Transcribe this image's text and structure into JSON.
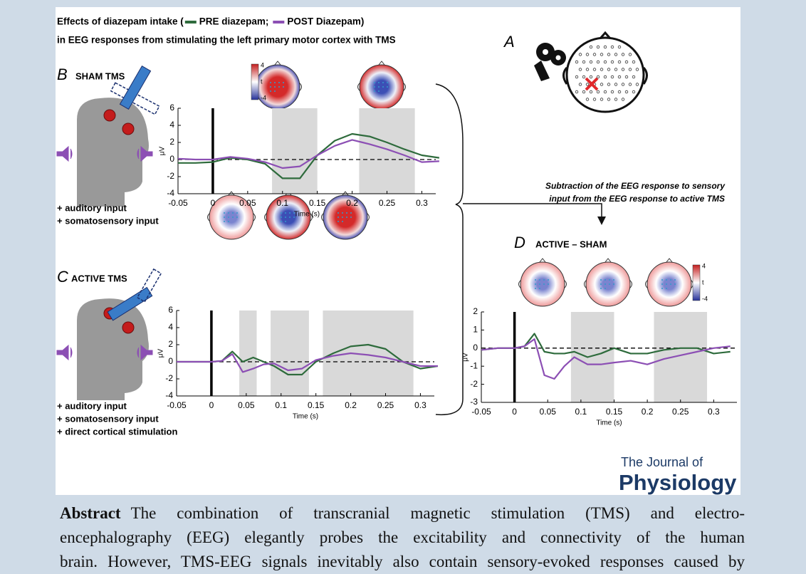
{
  "figure": {
    "title_start": "Effects of diazepam intake (",
    "legend_separator": ";",
    "title_end": ")",
    "subtitle": "in EEG responses from stimulating the left primary motor cortex with TMS",
    "panel_a": "A",
    "panel_b": {
      "letter": "B",
      "label": "SHAM TMS",
      "inputs": [
        "+ auditory input",
        "+ somatosensory input"
      ]
    },
    "panel_c": {
      "letter": "C",
      "label": "ACTIVE TMS",
      "inputs": [
        "+ auditory input",
        "+ somatosensory input",
        "+ direct cortical stimulation"
      ]
    },
    "panel_d": {
      "letter": "D",
      "label": "ACTIVE – SHAM"
    },
    "subtraction_note": [
      "Subtraction of the EEG response to sensory",
      "input from the EEG response to active TMS"
    ],
    "journal": [
      "The Journal of",
      "Physiology"
    ]
  },
  "chart_data": [
    {
      "type": "line",
      "xlabel": "Time (s)",
      "ylabel": "μV",
      "x": [
        -0.05,
        -0.025,
        0,
        0.025,
        0.05,
        0.075,
        0.1,
        0.125,
        0.15,
        0.175,
        0.2,
        0.225,
        0.25,
        0.275,
        0.3,
        0.325
      ],
      "series": [
        {
          "name": "PRE diazepam",
          "color": "#2e6b3c",
          "values": [
            -0.4,
            -0.4,
            -0.3,
            0.2,
            0,
            -0.5,
            -2.2,
            -2.2,
            0.5,
            2.2,
            3,
            2.7,
            2,
            1.2,
            0.5,
            0.2
          ]
        },
        {
          "name": "POST Diazepam",
          "color": "#8c4fb4",
          "values": [
            0.1,
            0,
            0,
            0.3,
            0.1,
            -0.3,
            -1,
            -0.8,
            0.5,
            1.6,
            2.3,
            1.8,
            1.2,
            0.5,
            -0.3,
            -0.2
          ]
        }
      ],
      "shaded_windows": [
        [
          0.085,
          0.15
        ],
        [
          0.21,
          0.29
        ]
      ],
      "xlim": [
        -0.05,
        0.32
      ],
      "ylim": [
        -4,
        6
      ],
      "xticks": [
        -0.05,
        0,
        0.05,
        0.1,
        0.15,
        0.2,
        0.25,
        0.3
      ],
      "yticks": [
        -4,
        -2,
        0,
        2,
        4,
        6
      ],
      "colorbar": {
        "max": 4,
        "label": "t",
        "min": -4
      }
    },
    {
      "type": "line",
      "xlabel": "Time (s)",
      "ylabel": "μV",
      "x": [
        -0.05,
        -0.025,
        0,
        0.015,
        0.03,
        0.045,
        0.06,
        0.075,
        0.09,
        0.11,
        0.13,
        0.15,
        0.175,
        0.2,
        0.225,
        0.25,
        0.275,
        0.3,
        0.325
      ],
      "series": [
        {
          "name": "PRE diazepam",
          "color": "#2e6b3c",
          "values": [
            0,
            0,
            0,
            0.1,
            1.2,
            0,
            0.5,
            0,
            -0.5,
            -1.5,
            -1.5,
            0,
            1,
            1.8,
            2,
            1.5,
            0,
            -0.8,
            -0.5
          ]
        },
        {
          "name": "POST Diazepam",
          "color": "#8c4fb4",
          "values": [
            0,
            0,
            0,
            0.1,
            0.9,
            -1.2,
            -0.8,
            -0.3,
            -0.2,
            -1,
            -0.8,
            0.2,
            0.7,
            1,
            0.8,
            0.5,
            0,
            -0.5,
            -0.5
          ]
        }
      ],
      "shaded_windows": [
        [
          0.04,
          0.065
        ],
        [
          0.085,
          0.14
        ],
        [
          0.16,
          0.29
        ]
      ],
      "xlim": [
        -0.05,
        0.32
      ],
      "ylim": [
        -4,
        6
      ],
      "xticks": [
        -0.05,
        0,
        0.05,
        0.1,
        0.15,
        0.2,
        0.25,
        0.3
      ],
      "yticks": [
        -4,
        -2,
        0,
        2,
        4,
        6
      ]
    },
    {
      "type": "line",
      "xlabel": "Time (s)",
      "ylabel": "μV",
      "x": [
        -0.05,
        -0.025,
        0,
        0.015,
        0.03,
        0.045,
        0.06,
        0.075,
        0.09,
        0.11,
        0.13,
        0.15,
        0.175,
        0.2,
        0.225,
        0.25,
        0.275,
        0.3,
        0.325
      ],
      "series": [
        {
          "name": "PRE diazepam",
          "color": "#2e6b3c",
          "values": [
            -0.1,
            0,
            0,
            0.1,
            0.8,
            -0.2,
            -0.3,
            -0.3,
            -0.2,
            -0.5,
            -0.3,
            0,
            -0.3,
            -0.3,
            -0.1,
            0,
            0,
            -0.3,
            -0.2
          ]
        },
        {
          "name": "POST Diazepam",
          "color": "#8c4fb4",
          "values": [
            -0.1,
            0,
            0,
            0.1,
            0.5,
            -1.5,
            -1.7,
            -1,
            -0.5,
            -0.9,
            -0.9,
            -0.8,
            -0.7,
            -0.9,
            -0.6,
            -0.4,
            -0.2,
            0,
            0.1
          ]
        }
      ],
      "shaded_windows": [
        [
          0.085,
          0.15
        ],
        [
          0.21,
          0.29
        ]
      ],
      "xlim": [
        -0.05,
        0.335
      ],
      "ylim": [
        -3,
        2
      ],
      "xticks": [
        -0.05,
        0,
        0.05,
        0.1,
        0.15,
        0.2,
        0.25,
        0.3
      ],
      "yticks": [
        -3,
        -2,
        -1,
        0,
        1,
        2
      ],
      "colorbar": {
        "max": 4,
        "label": "t",
        "min": -4
      }
    }
  ],
  "abstract": {
    "heading": "Abstract",
    "lines": [
      "The combination of transcranial magnetic stimulation (TMS) and electro-",
      "encephalography (EEG) elegantly probes the excitability and connectivity of the human",
      "brain. However, TMS-EEG signals inevitably also contain sensory-evoked responses caused by"
    ]
  }
}
